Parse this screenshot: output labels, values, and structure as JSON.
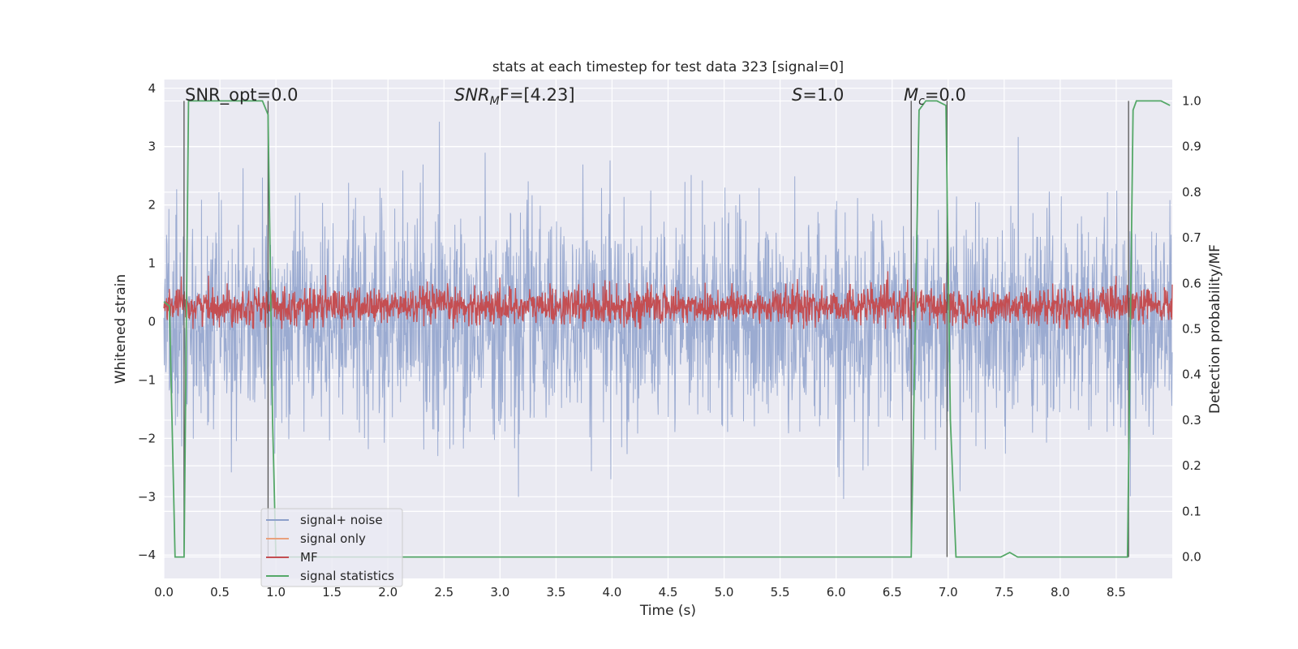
{
  "chart_data": {
    "type": "line",
    "title": "stats at each timestep for test data 323 [signal=0]",
    "xlabel": "Time (s)",
    "ylabel": "Whitened strain",
    "y2label": "Detection probability/MF",
    "xlim": [
      0.0,
      9.0
    ],
    "ylim": [
      -4.4,
      4.15
    ],
    "y2lim": [
      -0.047,
      1.047
    ],
    "xticks": [
      0.0,
      0.5,
      1.0,
      1.5,
      2.0,
      2.5,
      3.0,
      3.5,
      4.0,
      4.5,
      5.0,
      5.5,
      6.0,
      6.5,
      7.0,
      7.5,
      8.0,
      8.5
    ],
    "xtick_labels": [
      "0.0",
      "0.5",
      "1.0",
      "1.5",
      "2.0",
      "2.5",
      "3.0",
      "3.5",
      "4.0",
      "4.5",
      "5.0",
      "5.5",
      "6.0",
      "6.5",
      "7.0",
      "7.5",
      "8.0",
      "8.5"
    ],
    "yticks": [
      -4,
      -3,
      -2,
      -1,
      0,
      1,
      2,
      3,
      4
    ],
    "ytick_labels": [
      "−4",
      "−3",
      "−2",
      "−1",
      "0",
      "1",
      "2",
      "3",
      "4"
    ],
    "y2ticks": [
      0.0,
      0.1,
      0.2,
      0.3,
      0.4,
      0.5,
      0.6,
      0.7,
      0.8,
      0.9,
      1.0
    ],
    "y2tick_labels": [
      "0.0",
      "0.1",
      "0.2",
      "0.3",
      "0.4",
      "0.5",
      "0.6",
      "0.7",
      "0.8",
      "0.9",
      "1.0"
    ],
    "grid": true,
    "legend_position": "lower-left",
    "annotations": {
      "snr_opt": "SNR_opt=0.0",
      "snr_mf_label": "SNR",
      "snr_mf_sub": "M",
      "snr_mf_rest": "F=[4.23]",
      "s_label": "S",
      "s_rest": "=1.0",
      "mc_label": "M",
      "mc_sub": "c",
      "mc_rest": "=0.0"
    },
    "series": [
      {
        "name": "signal+ noise",
        "color": "#8da0cb",
        "axis": "left",
        "description_stats": {
          "mean": 0.0,
          "std": 0.9,
          "min": -3.6,
          "max": 3.75
        }
      },
      {
        "name": "signal only",
        "color": "#e9a07c",
        "axis": "left",
        "x": [],
        "y": []
      },
      {
        "name": "MF",
        "color": "#c44e52",
        "axis": "right",
        "description_stats": {
          "mean": 0.55,
          "min": 0.5,
          "max": 0.63
        }
      },
      {
        "name": "signal statistics",
        "color": "#55a868",
        "axis": "right",
        "x": [
          0.0,
          0.05,
          0.1,
          0.13,
          0.18,
          0.22,
          0.25,
          0.3,
          0.5,
          0.7,
          0.88,
          0.93,
          0.97,
          1.0,
          2.0,
          3.0,
          4.0,
          5.0,
          6.0,
          6.67,
          6.74,
          6.8,
          6.9,
          6.98,
          7.02,
          7.07,
          7.3,
          7.47,
          7.55,
          7.62,
          7.8,
          8.0,
          8.3,
          8.5,
          8.6,
          8.65,
          8.68,
          8.75,
          8.9,
          8.98
        ],
        "y": [
          0.56,
          0.55,
          0.0,
          0.0,
          0.0,
          1.0,
          1.0,
          1.0,
          1.0,
          1.0,
          1.0,
          0.97,
          0.3,
          0.0,
          0.0,
          0.0,
          0.0,
          0.0,
          0.0,
          0.0,
          0.98,
          1.0,
          1.0,
          0.99,
          0.3,
          0.0,
          0.0,
          0.0,
          0.01,
          0.0,
          0.0,
          0.0,
          0.0,
          0.0,
          0.0,
          0.98,
          1.0,
          1.0,
          1.0,
          0.99
        ]
      }
    ],
    "vertical_markers_x": [
      0.18,
      0.93,
      6.67,
      6.99,
      8.61
    ],
    "vertical_markers_range": [
      0.0,
      1.0
    ]
  }
}
